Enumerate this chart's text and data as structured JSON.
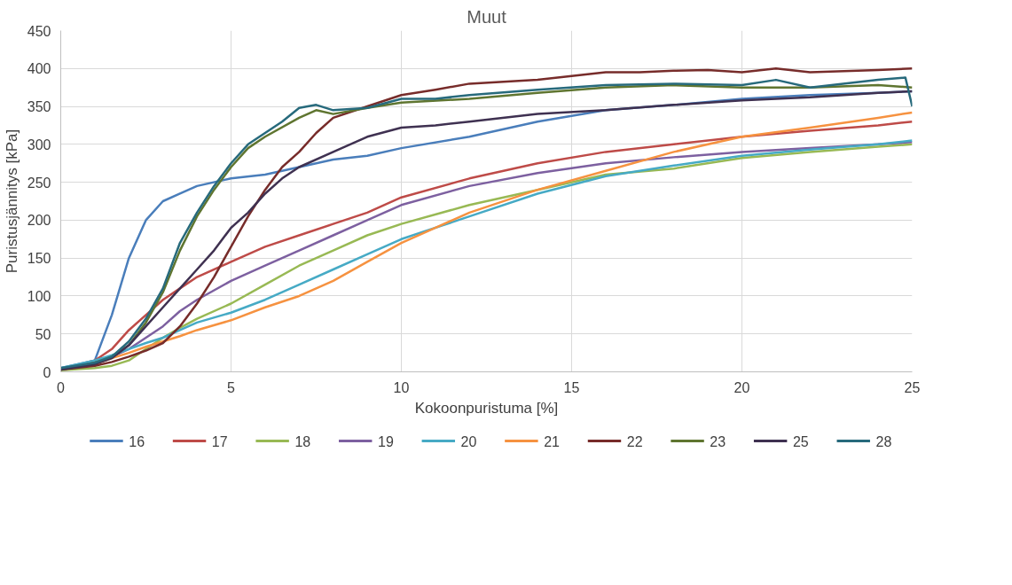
{
  "chart_data": {
    "type": "line",
    "title": "Muut",
    "xlabel": "Kokoonpuristuma [%]",
    "ylabel": "Puristusjännitys [kPa]",
    "xlim": [
      0,
      25
    ],
    "xticks": [
      0,
      5,
      10,
      15,
      20,
      25
    ],
    "ylim": [
      0,
      450
    ],
    "yticks": [
      0,
      50,
      100,
      150,
      200,
      250,
      300,
      350,
      400,
      450
    ],
    "grid": true,
    "legend": "bottom",
    "marker": "none",
    "line_style": "solid",
    "series": [
      {
        "name": "16",
        "color": "#4a7ebb",
        "x": [
          0,
          1,
          1.5,
          2,
          2.5,
          3,
          3.5,
          4,
          5,
          6,
          7,
          8,
          9,
          10,
          12,
          14,
          16,
          18,
          20,
          22,
          24,
          25
        ],
        "values": [
          5,
          15,
          75,
          150,
          200,
          225,
          235,
          245,
          255,
          260,
          270,
          280,
          285,
          295,
          310,
          330,
          345,
          352,
          360,
          365,
          368,
          370
        ]
      },
      {
        "name": "17",
        "color": "#be4b48",
        "x": [
          0,
          1,
          1.5,
          2,
          2.5,
          3,
          3.5,
          4,
          5,
          6,
          7,
          8,
          9,
          10,
          12,
          14,
          16,
          18,
          20,
          22,
          24,
          25
        ],
        "values": [
          3,
          15,
          30,
          55,
          75,
          95,
          110,
          125,
          145,
          165,
          180,
          195,
          210,
          230,
          255,
          275,
          290,
          300,
          310,
          318,
          325,
          330
        ]
      },
      {
        "name": "18",
        "color": "#98b954",
        "x": [
          0,
          1,
          1.5,
          2,
          2.5,
          3,
          3.5,
          4,
          5,
          6,
          7,
          8,
          9,
          10,
          12,
          14,
          16,
          18,
          20,
          22,
          24,
          25
        ],
        "values": [
          2,
          5,
          8,
          15,
          30,
          45,
          58,
          70,
          90,
          115,
          140,
          160,
          180,
          195,
          220,
          240,
          260,
          268,
          282,
          290,
          297,
          300
        ]
      },
      {
        "name": "19",
        "color": "#7d60a0",
        "x": [
          0,
          1,
          1.5,
          2,
          2.5,
          3,
          3.5,
          4,
          5,
          6,
          7,
          8,
          9,
          10,
          12,
          14,
          16,
          18,
          20,
          22,
          24,
          25
        ],
        "values": [
          3,
          10,
          20,
          30,
          45,
          60,
          80,
          95,
          120,
          140,
          160,
          180,
          200,
          220,
          245,
          262,
          275,
          283,
          290,
          295,
          300,
          303
        ]
      },
      {
        "name": "20",
        "color": "#46aac5",
        "x": [
          0,
          1,
          1.5,
          2,
          2.5,
          3,
          3.5,
          4,
          5,
          6,
          7,
          8,
          9,
          10,
          12,
          14,
          16,
          18,
          20,
          22,
          24,
          25
        ],
        "values": [
          5,
          15,
          22,
          30,
          38,
          45,
          55,
          65,
          78,
          95,
          115,
          135,
          155,
          175,
          205,
          235,
          258,
          272,
          285,
          293,
          300,
          305
        ]
      },
      {
        "name": "21",
        "color": "#f69240",
        "x": [
          0,
          1,
          1.5,
          2,
          2.5,
          3,
          3.5,
          4,
          5,
          6,
          7,
          8,
          9,
          10,
          12,
          14,
          16,
          18,
          20,
          22,
          24,
          25
        ],
        "values": [
          3,
          10,
          18,
          25,
          33,
          40,
          47,
          55,
          68,
          85,
          100,
          120,
          145,
          170,
          210,
          240,
          265,
          290,
          310,
          322,
          335,
          342
        ]
      },
      {
        "name": "22",
        "color": "#772c2a",
        "x": [
          0,
          1,
          1.5,
          2,
          2.5,
          3,
          3.5,
          4,
          4.5,
          5,
          5.5,
          6,
          6.5,
          7,
          7.5,
          8,
          9,
          10,
          11,
          12,
          14,
          16,
          17,
          18,
          19,
          20,
          21,
          22,
          24,
          25
        ],
        "values": [
          3,
          8,
          13,
          20,
          28,
          38,
          60,
          90,
          125,
          165,
          205,
          240,
          270,
          290,
          315,
          335,
          350,
          365,
          372,
          380,
          385,
          395,
          395,
          397,
          398,
          395,
          400,
          395,
          398,
          400
        ]
      },
      {
        "name": "23",
        "color": "#5f7530",
        "x": [
          0,
          1,
          1.5,
          2,
          2.5,
          3,
          3.5,
          4,
          4.5,
          5,
          5.5,
          6,
          7,
          7.5,
          8,
          9,
          10,
          12,
          14,
          16,
          18,
          20,
          22,
          24,
          25
        ],
        "values": [
          3,
          12,
          20,
          35,
          65,
          105,
          160,
          205,
          240,
          270,
          295,
          310,
          335,
          345,
          340,
          348,
          355,
          360,
          368,
          375,
          378,
          375,
          375,
          378,
          375
        ]
      },
      {
        "name": "25",
        "color": "#3f3151",
        "x": [
          0,
          1,
          1.5,
          2,
          2.5,
          3,
          3.5,
          4,
          4.5,
          5,
          5.5,
          6,
          6.5,
          7,
          8,
          9,
          10,
          11,
          12,
          14,
          16,
          18,
          20,
          22,
          24,
          25
        ],
        "values": [
          3,
          10,
          18,
          35,
          60,
          85,
          110,
          135,
          160,
          190,
          210,
          235,
          255,
          270,
          290,
          310,
          322,
          325,
          330,
          340,
          345,
          352,
          358,
          362,
          368,
          370
        ]
      },
      {
        "name": "28",
        "color": "#276a7c",
        "x": [
          0,
          1,
          1.5,
          2,
          2.5,
          3,
          3.5,
          4,
          4.5,
          5,
          5.5,
          6,
          6.5,
          7,
          7.5,
          8,
          9,
          10,
          11,
          12,
          14,
          16,
          18,
          20,
          21,
          22,
          24,
          24.8,
          25
        ],
        "values": [
          5,
          12,
          20,
          40,
          70,
          110,
          170,
          210,
          245,
          275,
          300,
          315,
          330,
          348,
          352,
          345,
          348,
          360,
          360,
          365,
          372,
          378,
          380,
          378,
          385,
          375,
          385,
          388,
          350
        ]
      }
    ]
  }
}
